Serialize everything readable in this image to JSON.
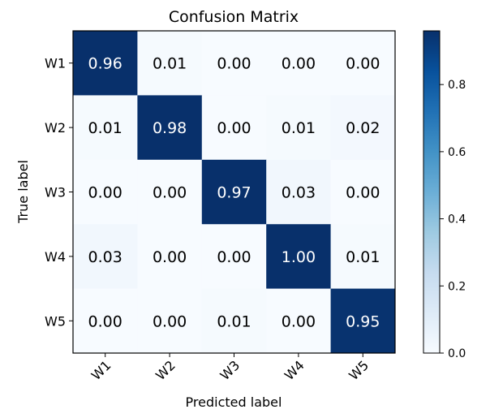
{
  "chart_data": {
    "type": "heatmap",
    "title": "Confusion Matrix",
    "xlabel": "Predicted label",
    "ylabel": "True label",
    "x_categories": [
      "W1",
      "W2",
      "W3",
      "W4",
      "W5"
    ],
    "y_categories": [
      "W1",
      "W2",
      "W3",
      "W4",
      "W5"
    ],
    "values": [
      [
        0.96,
        0.01,
        0.0,
        0.0,
        0.0
      ],
      [
        0.01,
        0.98,
        0.0,
        0.01,
        0.02
      ],
      [
        0.0,
        0.0,
        0.97,
        0.03,
        0.0
      ],
      [
        0.03,
        0.0,
        0.0,
        1.0,
        0.01
      ],
      [
        0.0,
        0.0,
        0.01,
        0.0,
        0.95
      ]
    ],
    "value_labels": [
      [
        "0.96",
        "0.01",
        "0.00",
        "0.00",
        "0.00"
      ],
      [
        "0.01",
        "0.98",
        "0.00",
        "0.01",
        "0.02"
      ],
      [
        "0.00",
        "0.00",
        "0.97",
        "0.03",
        "0.00"
      ],
      [
        "0.03",
        "0.00",
        "0.00",
        "1.00",
        "0.01"
      ],
      [
        "0.00",
        "0.00",
        "0.01",
        "0.00",
        "0.95"
      ]
    ],
    "colorbar": {
      "ticks": [
        0.0,
        0.2,
        0.4,
        0.6,
        0.8
      ],
      "tick_labels": [
        "0.0",
        "0.2",
        "0.4",
        "0.6",
        "0.8"
      ],
      "range": [
        0,
        0.96
      ],
      "colormap": "Blues",
      "color_low": "#f7fbff",
      "color_high": "#08306b"
    },
    "grid": false,
    "legend": "colorbar-right"
  }
}
